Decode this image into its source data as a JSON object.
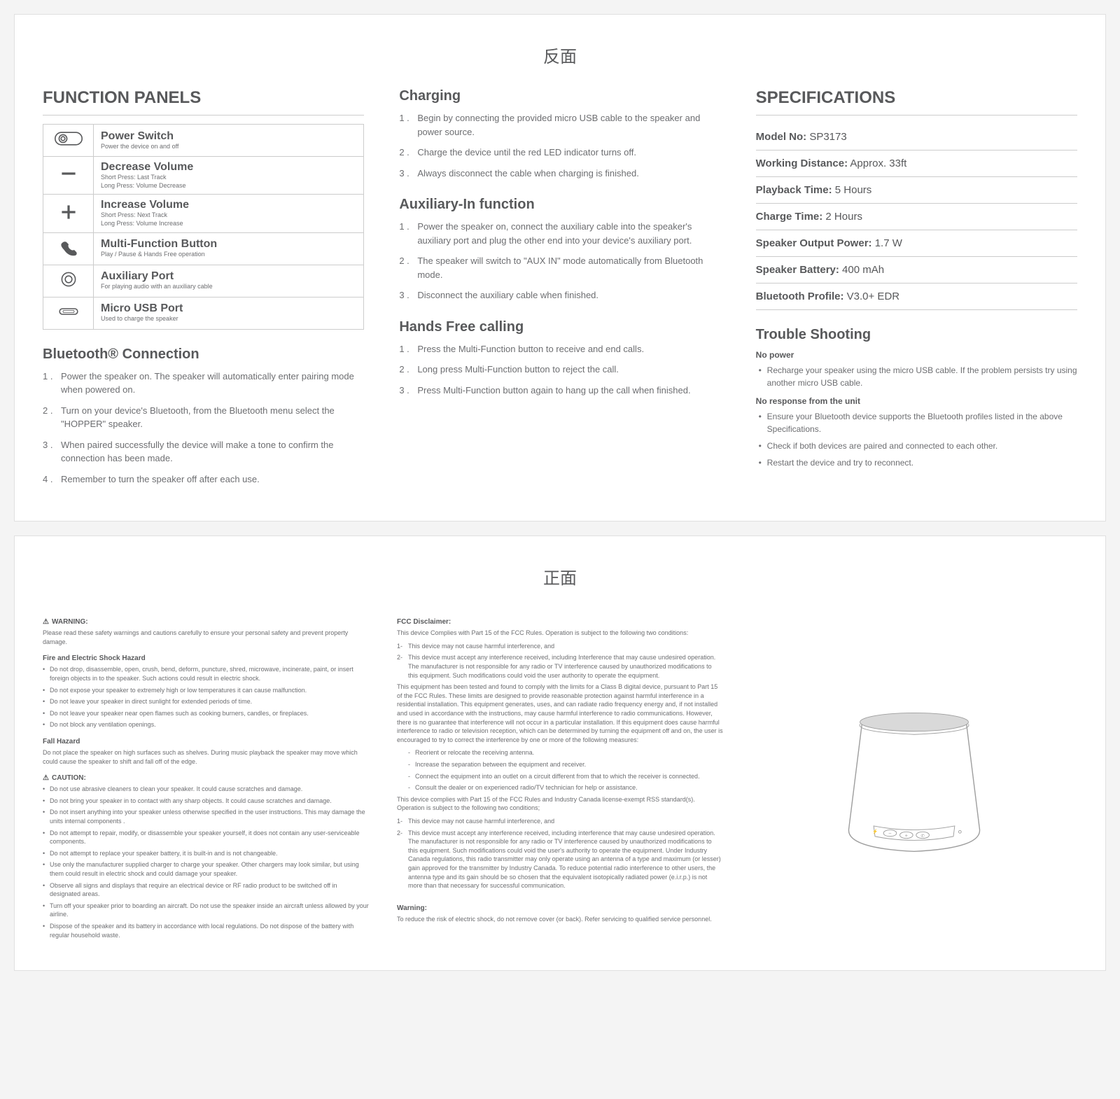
{
  "page_labels": {
    "back": "反面",
    "front": "正面"
  },
  "function_panels": {
    "title": "FUNCTION PANELS",
    "rows": [
      {
        "name": "Power Switch",
        "desc": "Power the device on and off"
      },
      {
        "name": "Decrease Volume",
        "desc": "Short Press: Last Track\nLong Press: Volume Decrease"
      },
      {
        "name": "Increase Volume",
        "desc": "Short Press: Next Track\nLong Press: Volume Increase"
      },
      {
        "name": "Multi-Function Button",
        "desc": "Play / Pause & Hands Free operation"
      },
      {
        "name": "Auxiliary Port",
        "desc": "For playing audio with an auxiliary cable"
      },
      {
        "name": "Micro USB Port",
        "desc": "Used to charge the speaker"
      }
    ]
  },
  "bluetooth": {
    "title": "Bluetooth® Connection",
    "steps": [
      "Power the speaker on. The speaker will automatically enter pairing mode when powered on.",
      "Turn on your device's Bluetooth, from the Bluetooth menu select the \"HOPPER\" speaker.",
      "When paired successfully the device will make a tone to confirm the connection has been made.",
      "Remember to turn the speaker off after each use."
    ]
  },
  "charging": {
    "title": "Charging",
    "steps": [
      "Begin by connecting the provided micro USB cable to the speaker and power source.",
      "Charge the device until the red LED indicator turns off.",
      "Always disconnect the cable when charging is finished."
    ]
  },
  "aux": {
    "title": "Auxiliary-In function",
    "steps": [
      "Power the speaker on, connect the auxiliary cable into the speaker's auxiliary port and plug the other end into your device's auxiliary port.",
      "The speaker will switch to \"AUX IN\" mode automatically from Bluetooth mode.",
      "Disconnect the auxiliary cable when finished."
    ]
  },
  "hands_free": {
    "title": "Hands Free calling",
    "steps": [
      "Press the Multi-Function button to receive and end calls.",
      "Long press Multi-Function button to reject the call.",
      "Press Multi-Function button again to hang up the call when finished."
    ]
  },
  "specs": {
    "title": "SPECIFICATIONS",
    "rows": [
      {
        "label": "Model No:",
        "value": " SP3173"
      },
      {
        "label": "Working Distance:",
        "value": " Approx. 33ft"
      },
      {
        "label": "Playback Time:",
        "value": " 5 Hours"
      },
      {
        "label": "Charge Time:",
        "value": " 2 Hours"
      },
      {
        "label": "Speaker Output Power:",
        "value": " 1.7 W"
      },
      {
        "label": "Speaker Battery:",
        "value": " 400 mAh"
      },
      {
        "label": "Bluetooth Profile:",
        "value": " V3.0+ EDR"
      }
    ]
  },
  "trouble": {
    "title": "Trouble Shooting",
    "groups": [
      {
        "heading": "No power",
        "items": [
          "Recharge your speaker using the micro USB cable. If the problem persists try using another micro USB cable."
        ]
      },
      {
        "heading": "No response from the unit",
        "items": [
          "Ensure your Bluetooth device supports the Bluetooth profiles listed in the above Specifications.",
          "Check if both devices are paired and connected to each other.",
          "Restart the device and try to reconnect."
        ]
      }
    ]
  },
  "warnings": {
    "warning_label": "WARNING:",
    "warning_intro": "Please read these safety warnings and cautions carefully to ensure your personal safety and prevent property damage.",
    "fire_heading": "Fire and Electric Shock Hazard",
    "fire_items": [
      "Do not drop, disassemble, open, crush, bend, deform, puncture, shred, microwave, incinerate, paint, or insert foreign objects in to the speaker. Such actions could result in electric shock.",
      "Do not expose your speaker to extremely high or low temperatures it can cause malfunction.",
      "Do not leave your speaker in direct sunlight for extended periods of time.",
      "Do not leave your speaker near open flames such as cooking burners, candles, or fireplaces.",
      "Do not block any ventilation openings."
    ],
    "fall_heading": "Fall Hazard",
    "fall_text": "Do not place the speaker on high surfaces such as shelves. During music playback the speaker may move which could cause the speaker to shift and fall off of the edge.",
    "caution_label": "CAUTION:",
    "caution_items": [
      "Do not use abrasive cleaners to clean your speaker. It could cause scratches and damage.",
      "Do not bring your speaker in to contact with any sharp objects. It could cause scratches and damage.",
      "Do not insert anything into your speaker unless otherwise specified in the user instructions. This may damage the units internal components .",
      "Do not attempt to repair, modify, or disassemble your speaker yourself, it does not contain any user-serviceable components.",
      "Do not attempt to replace your speaker battery, it is built-in and is not changeable.",
      "Use only the manufacturer supplied charger to charge your speaker. Other chargers may look similar, but using them could result in electric shock and could damage your speaker.",
      "Observe all signs and displays that require an electrical device or RF radio product to be switched off in designated areas.",
      "Turn off your speaker prior to boarding an aircraft. Do not use the speaker inside an aircraft unless allowed by your airline.",
      "Dispose of the speaker and its battery in accordance with local regulations. Do not dispose of the battery with regular household waste."
    ]
  },
  "fcc": {
    "heading": "FCC Disclaimer:",
    "intro": "This device Complies with Part 15 of the FCC Rules. Operation is subject to the following two conditions:",
    "cond1_num": "1-",
    "cond1": "This device may not cause harmful interference, and",
    "cond2_num": "2-",
    "cond2": "This device must accept any interference received, including Interference that may cause undesired operation. The manufacturer is not responsible for any radio or TV interference caused by unauthorized modifications to this equipment. Such modifications could void the user authority to operate the equipment.",
    "para1": "This equipment has been tested and found to comply with the limits for a Class B digital device, pursuant to Part 15 of the FCC Rules. These limits are designed to provide reasonable protection against harmful interference in a residential installation. This equipment generates, uses, and can radiate radio frequency energy and, if not installed and used in accordance with the instructions, may cause harmful interference to radio communications. However, there is no guarantee that interference will not occur in a particular installation. If this equipment does cause harmful interference to radio or television reception, which can be determined by turning the equipment off and on, the user is encouraged to try to correct the interference by one or more of the following measures:",
    "measures": [
      "Reorient or relocate the receiving antenna.",
      "Increase the separation between the equipment and receiver.",
      "Connect the equipment into an outlet on a circuit different from that to which the receiver is connected.",
      "Consult the dealer or on experienced radio/TV technician for help or assistance."
    ],
    "para2": "This device complies with Part 15 of the FCC Rules and Industry Canada license-exempt RSS standard(s). Operation is subject to the following two conditions;",
    "ic1_num": "1-",
    "ic1": "This device may not cause harmful interference, and",
    "ic2_num": "2-",
    "ic2": "This device must accept any interference received, including interference that may cause undesired operation. The manufacturer is not responsible for any radio or TV interference caused by unauthorized modifications to this equipment. Such modifications could void the user's authority to operate the equipment. Under Industry Canada regulations, this radio transmitter may only operate using an antenna of a type and maximum (or lesser) gain approved for the transmitter by Industry Canada. To reduce potential radio interference to other users, the antenna type and its gain should be so chosen that the equivalent isotopically radiated power (e.i.r.p.) is not more than that necessary for successful communication.",
    "warn_heading": "Warning:",
    "warn_text": "To reduce the risk of electric shock, do not remove cover (or back). Refer servicing to qualified service personnel."
  },
  "colors": {
    "text": "#58595b",
    "text_light": "#6d6e71",
    "border": "#cccccc",
    "background": "#ffffff"
  }
}
